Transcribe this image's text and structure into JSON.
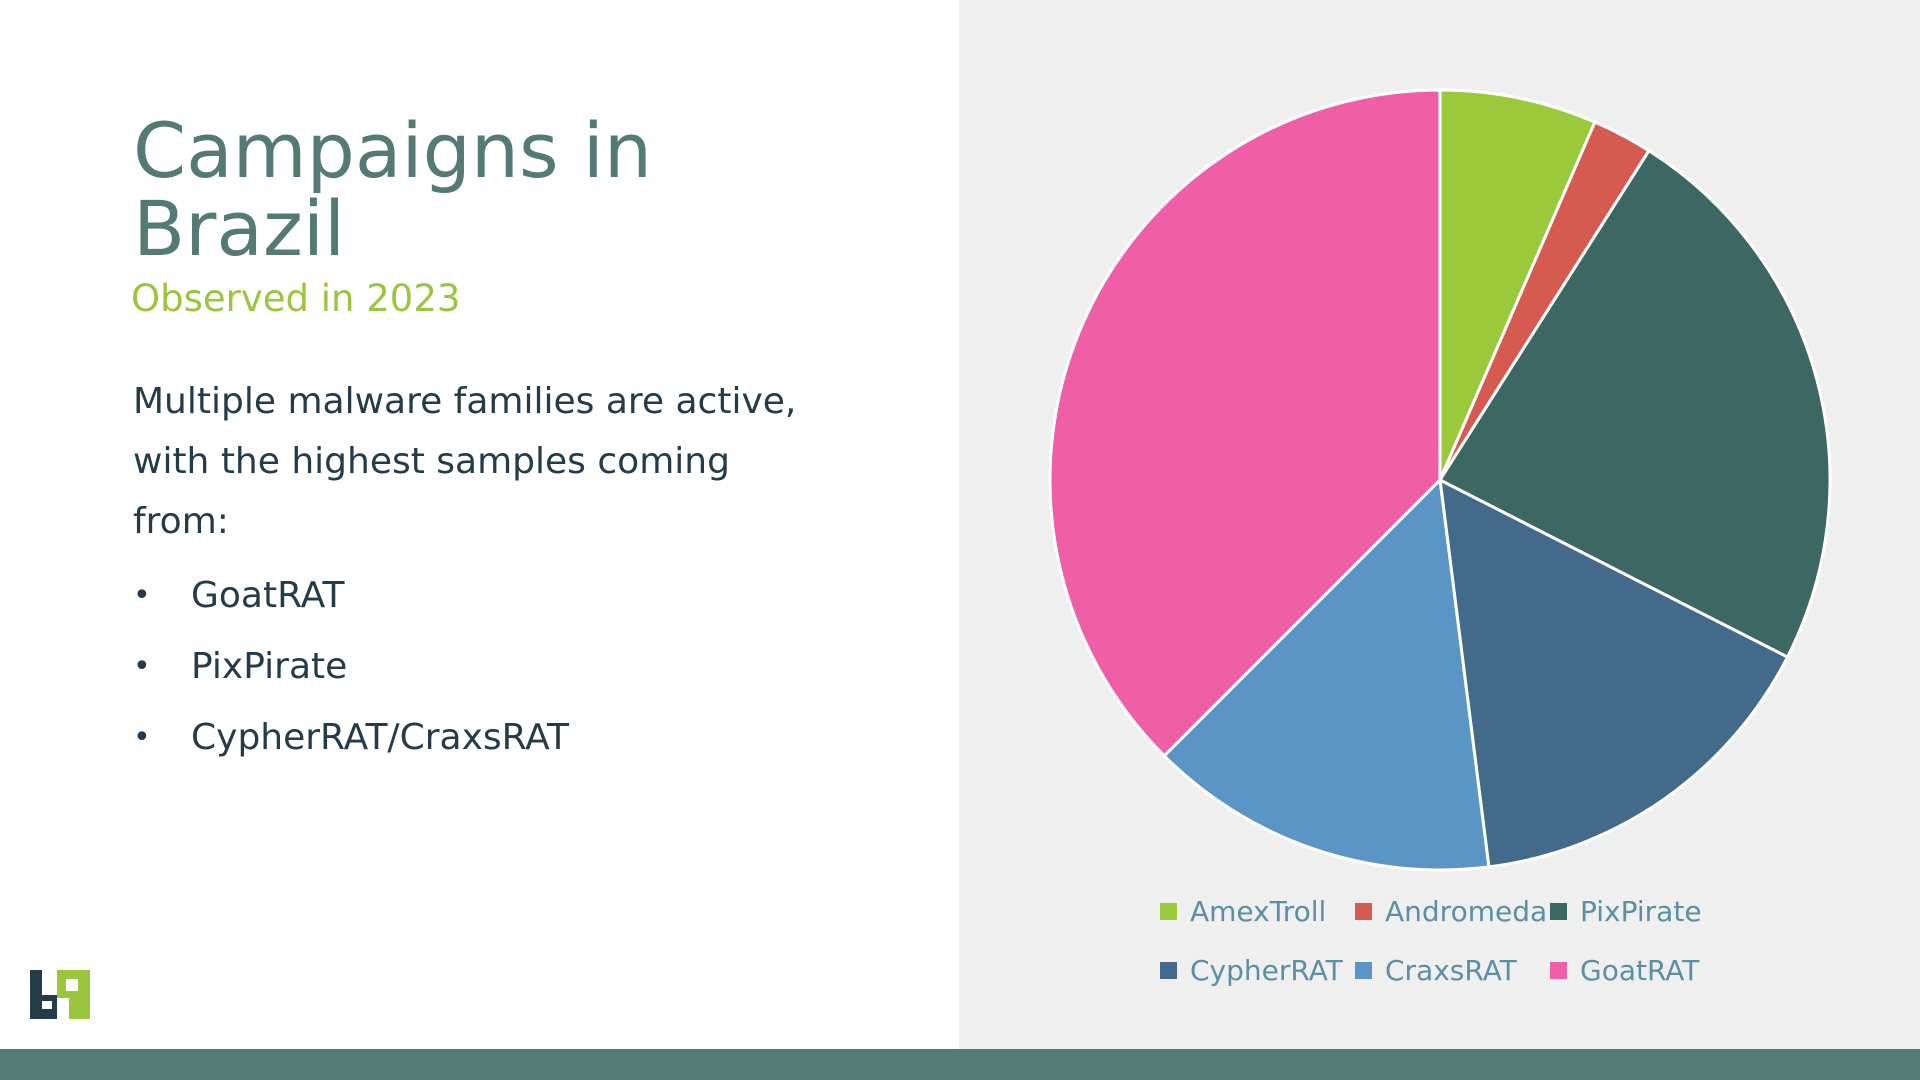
{
  "slide": {
    "title": "Campaigns in Brazil",
    "subtitle": "Observed in 2023",
    "body": "Multiple malware families are active, with the highest samples coming from:",
    "bullets": [
      "GoatRAT",
      "PixPirate",
      "CypherRAT/CraxsRAT"
    ],
    "bullet_glyph": "•"
  },
  "colors": {
    "title": "#537a73",
    "subtitle": "#9ac63d",
    "body_text": "#243c4a",
    "right_panel": "#efefef",
    "footer_bar": "#537a73",
    "legend_text": "#5a8fa4"
  },
  "chart_data": {
    "type": "pie",
    "categories": [
      "AmexTroll",
      "Andromeda",
      "PixPirate",
      "CypherRAT",
      "CraxsRAT",
      "GoatRAT"
    ],
    "values": [
      6.5,
      2.5,
      23.5,
      15.5,
      14.5,
      37.5
    ],
    "colors": [
      "#9ac93b",
      "#d55a50",
      "#3c6762",
      "#436a8b",
      "#5b95c5",
      "#ee5fa8"
    ],
    "start_angle_deg": 0,
    "direction": "clockwise",
    "legend_position": "bottom"
  }
}
